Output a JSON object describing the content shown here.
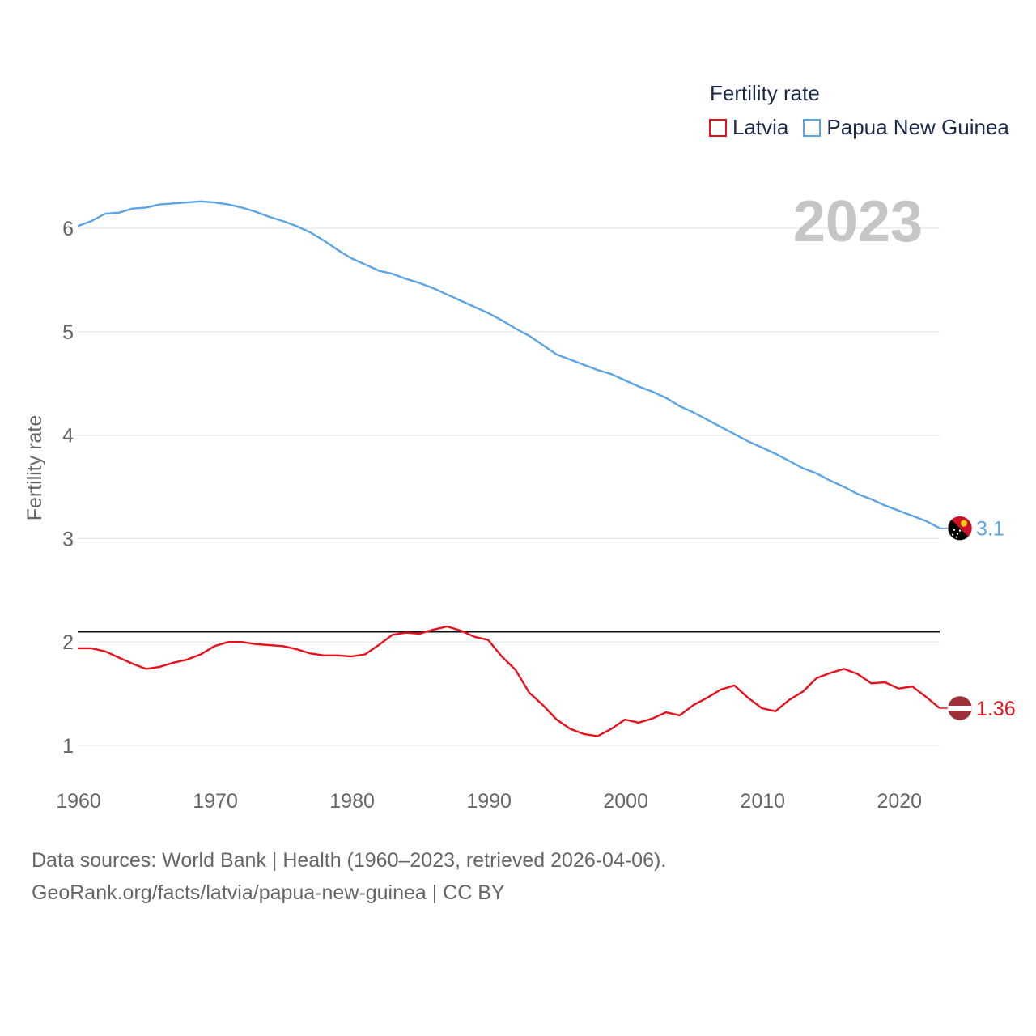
{
  "chart_data": {
    "type": "line",
    "legend_title": "Fertility rate",
    "year_label": "2023",
    "ylabel": "Fertility rate",
    "xlabel": "",
    "xlim": [
      1960,
      2023
    ],
    "ylim": [
      0.5,
      6.7
    ],
    "xticks": [
      1960,
      1970,
      1980,
      1990,
      2000,
      2010,
      2020
    ],
    "yticks": [
      1,
      2,
      3,
      4,
      5,
      6
    ],
    "grid": true,
    "legend_position": "top-right",
    "reference_line": 2.1,
    "x": [
      1960,
      1961,
      1962,
      1963,
      1964,
      1965,
      1966,
      1967,
      1968,
      1969,
      1970,
      1971,
      1972,
      1973,
      1974,
      1975,
      1976,
      1977,
      1978,
      1979,
      1980,
      1981,
      1982,
      1983,
      1984,
      1985,
      1986,
      1987,
      1988,
      1989,
      1990,
      1991,
      1992,
      1993,
      1994,
      1995,
      1996,
      1997,
      1998,
      1999,
      2000,
      2001,
      2002,
      2003,
      2004,
      2005,
      2006,
      2007,
      2008,
      2009,
      2010,
      2011,
      2012,
      2013,
      2014,
      2015,
      2016,
      2017,
      2018,
      2019,
      2020,
      2021,
      2022,
      2023
    ],
    "series": [
      {
        "name": "Latvia",
        "color": "#e8111b",
        "end_label": "1.36",
        "flag_icon": "latvia-flag-icon",
        "values": [
          1.94,
          1.94,
          1.91,
          1.85,
          1.79,
          1.74,
          1.76,
          1.8,
          1.83,
          1.88,
          1.96,
          2.0,
          2.0,
          1.98,
          1.97,
          1.96,
          1.93,
          1.89,
          1.87,
          1.87,
          1.86,
          1.88,
          1.97,
          2.07,
          2.09,
          2.08,
          2.12,
          2.15,
          2.11,
          2.05,
          2.02,
          1.86,
          1.73,
          1.51,
          1.39,
          1.25,
          1.16,
          1.11,
          1.09,
          1.16,
          1.25,
          1.22,
          1.26,
          1.32,
          1.29,
          1.39,
          1.46,
          1.54,
          1.58,
          1.46,
          1.36,
          1.33,
          1.44,
          1.52,
          1.65,
          1.7,
          1.74,
          1.69,
          1.6,
          1.61,
          1.55,
          1.57,
          1.47,
          1.36
        ]
      },
      {
        "name": "Papua New Guinea",
        "color": "#5ba4e5",
        "end_label": "3.1",
        "flag_icon": "papua-new-guinea-flag-icon",
        "values": [
          6.02,
          6.07,
          6.14,
          6.15,
          6.19,
          6.2,
          6.23,
          6.24,
          6.25,
          6.26,
          6.25,
          6.23,
          6.2,
          6.16,
          6.11,
          6.07,
          6.02,
          5.96,
          5.88,
          5.79,
          5.71,
          5.65,
          5.59,
          5.56,
          5.51,
          5.47,
          5.42,
          5.36,
          5.3,
          5.24,
          5.18,
          5.11,
          5.03,
          4.96,
          4.87,
          4.78,
          4.73,
          4.68,
          4.63,
          4.59,
          4.53,
          4.47,
          4.42,
          4.36,
          4.28,
          4.22,
          4.15,
          4.08,
          4.01,
          3.94,
          3.88,
          3.82,
          3.75,
          3.68,
          3.63,
          3.56,
          3.5,
          3.43,
          3.38,
          3.32,
          3.27,
          3.22,
          3.17,
          3.1
        ]
      }
    ]
  },
  "footer": {
    "source_line": "Data sources: World Bank | Health (1960–2023, retrieved 2026-04-06).",
    "url_line": "GeoRank.org/facts/latvia/papua-new-guinea | CC BY"
  }
}
